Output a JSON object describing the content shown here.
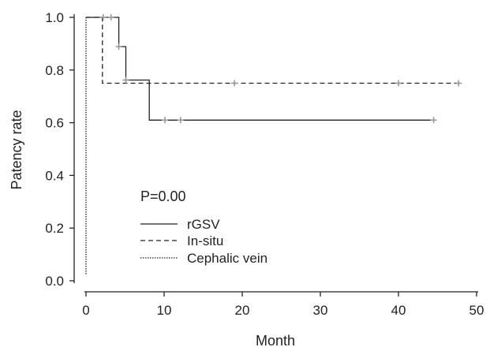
{
  "chart_data": {
    "type": "line",
    "title": "",
    "xlabel": "Month",
    "ylabel": "Patency rate",
    "xlim": [
      0,
      50
    ],
    "ylim": [
      0.0,
      1.0
    ],
    "x_ticks": [
      "0",
      "10",
      "20",
      "30",
      "40",
      "50"
    ],
    "y_ticks": [
      "0.0",
      "0.2",
      "0.4",
      "0.6",
      "0.8",
      "1.0"
    ],
    "annotation": "P=0.00",
    "grid": false,
    "legend_position": "lower-center",
    "line_color": "#222222",
    "censor_color": "#999999",
    "series": [
      {
        "name": "rGSV",
        "style": "solid",
        "step_points": [
          [
            0,
            1.0
          ],
          [
            4.2,
            1.0
          ],
          [
            4.2,
            0.889
          ],
          [
            5.1,
            0.889
          ],
          [
            5.1,
            0.762
          ],
          [
            8.1,
            0.762
          ],
          [
            8.1,
            0.61
          ],
          [
            44.5,
            0.61
          ]
        ],
        "censored": [
          [
            2.2,
            1.0
          ],
          [
            3.2,
            1.0
          ],
          [
            4.2,
            0.889
          ],
          [
            5.1,
            0.762
          ],
          [
            10.1,
            0.61
          ],
          [
            12.1,
            0.61
          ],
          [
            44.5,
            0.61
          ]
        ]
      },
      {
        "name": "In-situ",
        "style": "dashed",
        "step_points": [
          [
            0,
            1.0
          ],
          [
            2.1,
            1.0
          ],
          [
            2.1,
            0.75
          ],
          [
            47.7,
            0.75
          ]
        ],
        "censored": [
          [
            19.0,
            0.75
          ],
          [
            40.0,
            0.75
          ],
          [
            47.7,
            0.75
          ]
        ]
      },
      {
        "name": "Cephalic vein",
        "style": "dotted",
        "step_points": [
          [
            0,
            1.0
          ],
          [
            0,
            0.02
          ]
        ],
        "censored": []
      }
    ]
  }
}
